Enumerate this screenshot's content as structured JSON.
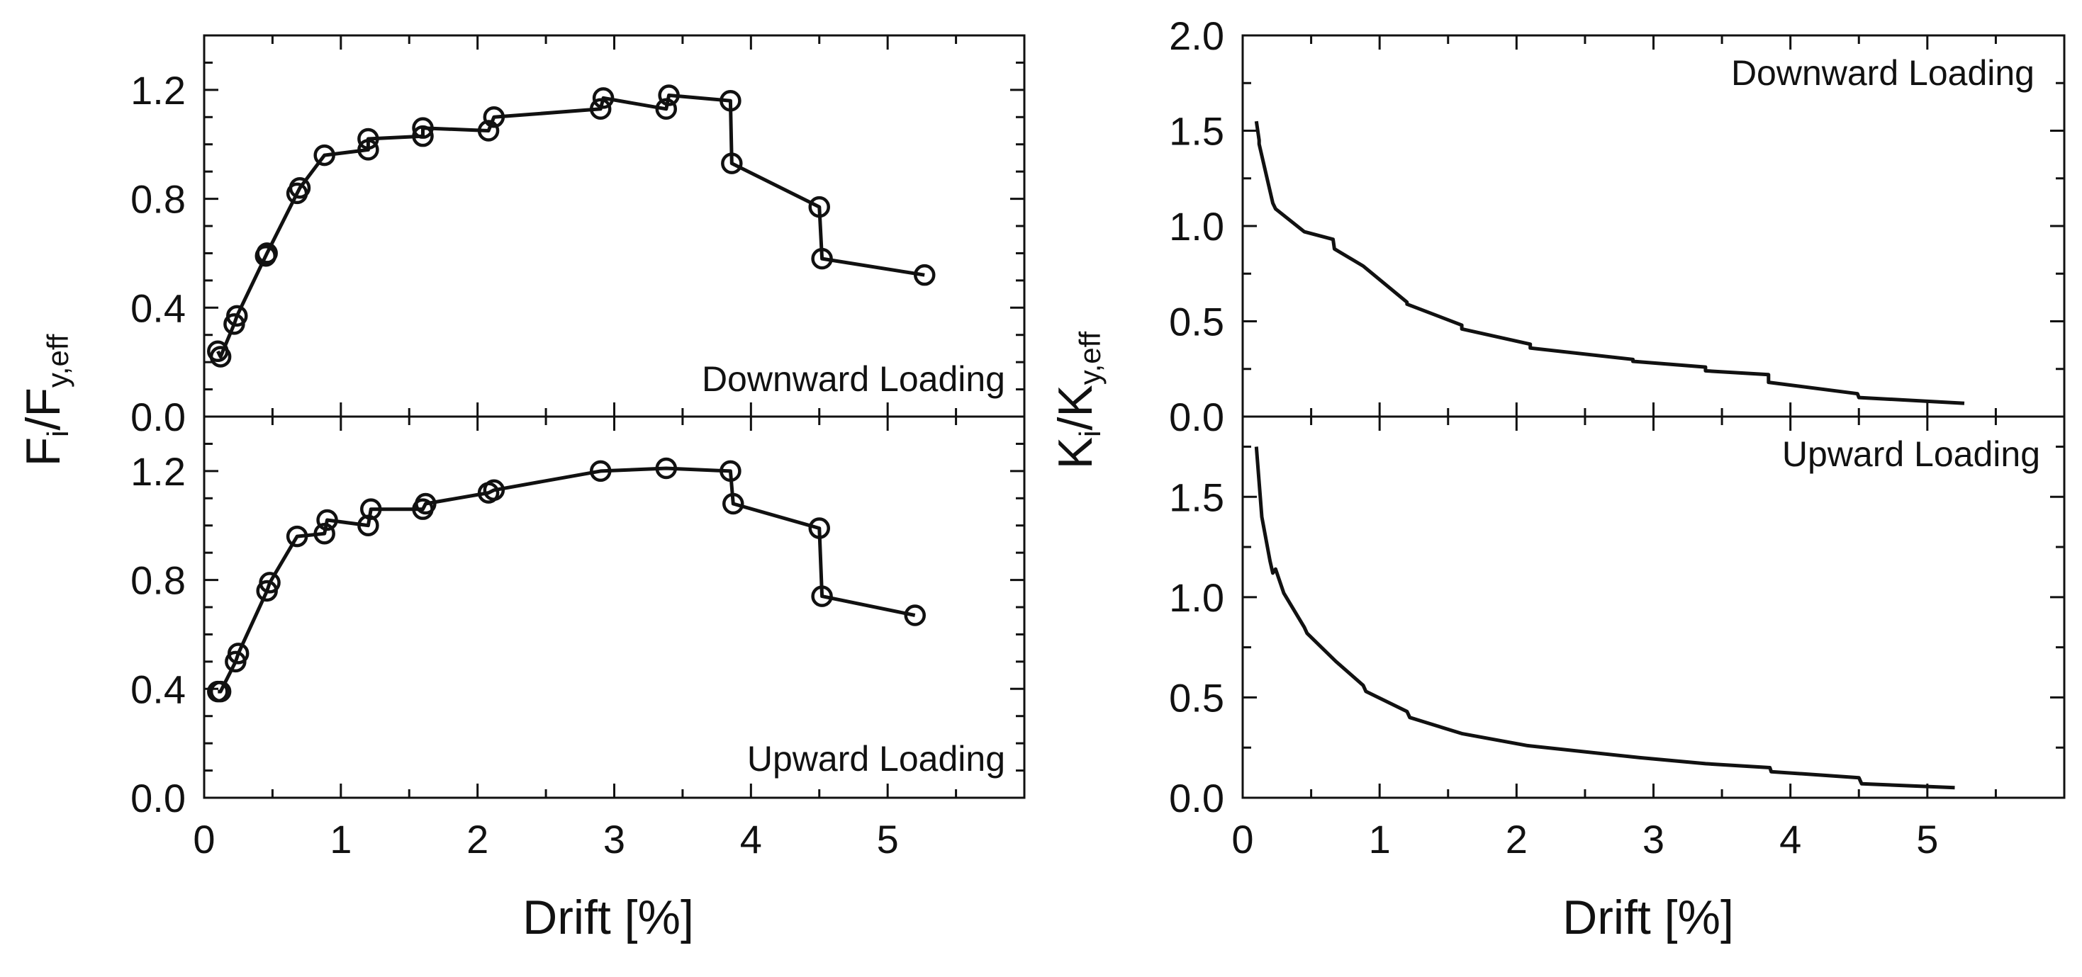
{
  "chart_data": [
    {
      "type": "line",
      "panel": "left-top",
      "title": "",
      "annotation": "Downward Loading",
      "xlabel": "Drift [%]",
      "ylabel_main": "F",
      "ylabel_sub_i": "i",
      "ylabel_sep": "/F",
      "ylabel_sub_y": "y,eff",
      "xlim": [
        0,
        6
      ],
      "ylim": [
        0,
        1.4
      ],
      "xticks": [
        "0",
        "1",
        "2",
        "3",
        "4",
        "5"
      ],
      "yticks": [
        "0.0",
        "0.4",
        "0.8",
        "1.2"
      ],
      "series": [
        {
          "name": "Downward Loading",
          "marker": "circle",
          "x": [
            0.1,
            0.12,
            0.22,
            0.24,
            0.45,
            0.46,
            0.68,
            0.7,
            0.88,
            1.2,
            1.2,
            1.6,
            1.6,
            2.08,
            2.12,
            2.9,
            2.92,
            3.38,
            3.4,
            3.85,
            3.86,
            4.5,
            4.52,
            5.27
          ],
          "y": [
            0.24,
            0.22,
            0.34,
            0.37,
            0.59,
            0.6,
            0.82,
            0.84,
            0.96,
            0.98,
            1.02,
            1.03,
            1.06,
            1.05,
            1.1,
            1.13,
            1.17,
            1.13,
            1.18,
            1.16,
            0.93,
            0.77,
            0.58,
            0.52
          ]
        }
      ]
    },
    {
      "type": "line",
      "panel": "left-bottom",
      "title": "",
      "annotation": "Upward Loading",
      "xlabel": "Drift [%]",
      "xlim": [
        0,
        6
      ],
      "ylim": [
        0,
        1.4
      ],
      "xticks": [
        "0",
        "1",
        "2",
        "3",
        "4",
        "5"
      ],
      "yticks": [
        "0.0",
        "0.4",
        "0.8",
        "1.2"
      ],
      "series": [
        {
          "name": "Upward Loading",
          "marker": "circle",
          "x": [
            0.1,
            0.12,
            0.23,
            0.25,
            0.46,
            0.48,
            0.68,
            0.88,
            0.9,
            1.2,
            1.22,
            1.6,
            1.62,
            2.08,
            2.12,
            2.9,
            3.38,
            3.85,
            3.87,
            4.5,
            4.52,
            5.2
          ],
          "y": [
            0.39,
            0.39,
            0.5,
            0.53,
            0.76,
            0.79,
            0.96,
            0.97,
            1.02,
            1.0,
            1.06,
            1.06,
            1.08,
            1.12,
            1.13,
            1.2,
            1.21,
            1.2,
            1.08,
            0.99,
            0.74,
            0.67
          ]
        }
      ]
    },
    {
      "type": "line",
      "panel": "right-top",
      "title": "",
      "annotation": "Downward Loading",
      "xlabel": "Drift [%]",
      "ylabel_main": "K",
      "ylabel_sub_i": "i",
      "ylabel_sep": "/K",
      "ylabel_sub_y": "y,eff",
      "xlim": [
        0,
        6
      ],
      "ylim": [
        0,
        2.0
      ],
      "xticks": [
        "0",
        "1",
        "2",
        "3",
        "4",
        "5"
      ],
      "yticks": [
        "0.0",
        "0.5",
        "1.0",
        "1.5",
        "2.0"
      ],
      "series": [
        {
          "name": "Downward Loading",
          "x": [
            0.1,
            0.12,
            0.12,
            0.22,
            0.24,
            0.45,
            0.66,
            0.67,
            0.88,
            1.2,
            1.2,
            1.6,
            1.6,
            2.1,
            2.1,
            2.85,
            2.85,
            3.38,
            3.38,
            3.84,
            3.84,
            4.49,
            4.5,
            5.27
          ],
          "y": [
            1.55,
            1.45,
            1.43,
            1.12,
            1.09,
            0.97,
            0.93,
            0.88,
            0.79,
            0.6,
            0.59,
            0.48,
            0.46,
            0.38,
            0.36,
            0.3,
            0.29,
            0.26,
            0.24,
            0.22,
            0.18,
            0.12,
            0.1,
            0.07
          ]
        }
      ]
    },
    {
      "type": "line",
      "panel": "right-bottom",
      "title": "",
      "annotation": "Upward Loading",
      "xlabel": "Drift [%]",
      "xlim": [
        0,
        6
      ],
      "ylim": [
        0,
        1.9
      ],
      "xticks": [
        "0",
        "1",
        "2",
        "3",
        "4",
        "5"
      ],
      "yticks": [
        "0.0",
        "0.5",
        "1.0",
        "1.5"
      ],
      "series": [
        {
          "name": "Upward Loading",
          "x": [
            0.1,
            0.14,
            0.2,
            0.22,
            0.24,
            0.3,
            0.45,
            0.47,
            0.68,
            0.88,
            0.9,
            1.2,
            1.22,
            1.6,
            2.08,
            2.9,
            3.38,
            3.85,
            3.86,
            4.5,
            4.52,
            5.2
          ],
          "y": [
            1.75,
            1.4,
            1.18,
            1.12,
            1.14,
            1.02,
            0.85,
            0.82,
            0.68,
            0.56,
            0.53,
            0.43,
            0.4,
            0.32,
            0.26,
            0.2,
            0.17,
            0.15,
            0.13,
            0.1,
            0.07,
            0.05
          ]
        }
      ]
    }
  ]
}
